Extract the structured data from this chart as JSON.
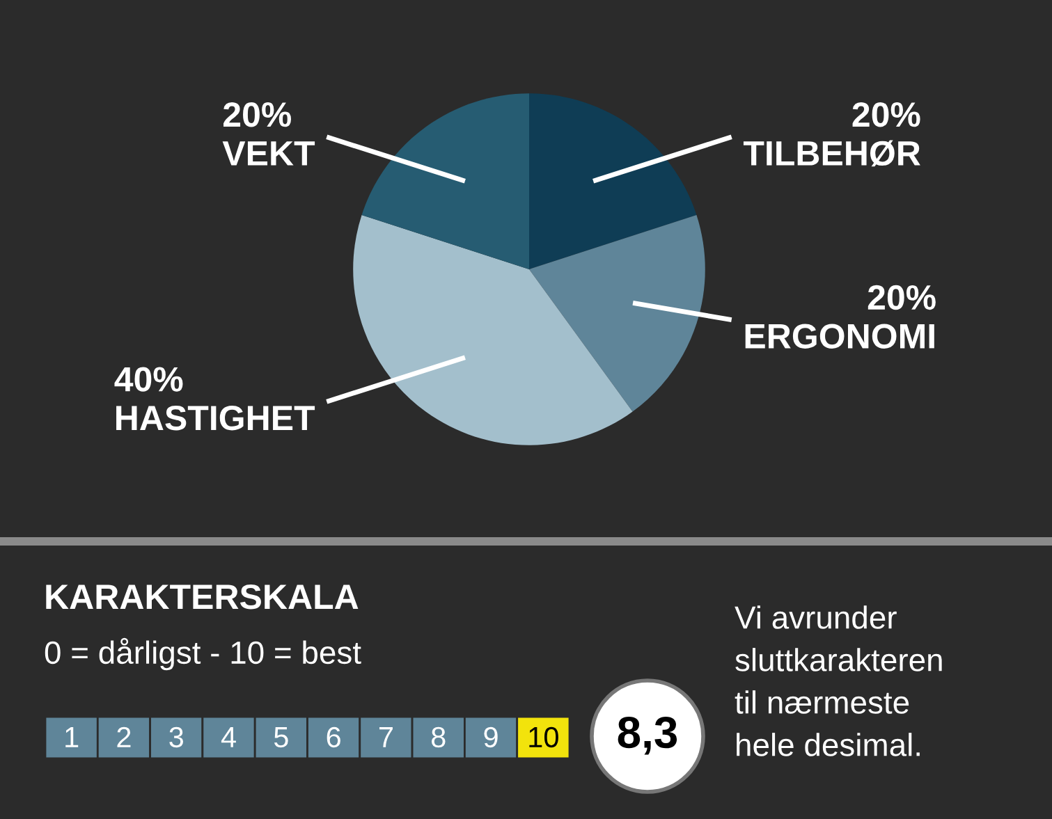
{
  "chart_data": [
    {
      "type": "pie",
      "categories": [
        "TILBEHØR",
        "ERGONOMI",
        "HASTIGHET",
        "VEKT"
      ],
      "values": [
        20,
        20,
        40,
        20
      ],
      "value_labels": [
        "20%",
        "20%",
        "40%",
        "20%"
      ],
      "colors": [
        "#0f3d55",
        "#5f8599",
        "#a3bfcc",
        "#265c72"
      ]
    },
    {
      "type": "heatmap",
      "title": "KARAKTERSKALA",
      "subtitle": "0 = dårligst - 10 = best",
      "categories": [
        null,
        null,
        null,
        null,
        null,
        null,
        null,
        null,
        null,
        null
      ],
      "y_categories": [
        null
      ],
      "cells": [
        [
          1,
          2,
          3,
          4,
          5,
          6,
          7,
          8,
          9,
          10
        ]
      ],
      "cell_labels": [
        [
          "1",
          "2",
          "3",
          "4",
          "5",
          "6",
          "7",
          "8",
          "9",
          "10"
        ]
      ],
      "colors": [
        "#5f8599",
        "#5f8599",
        "#5f8599",
        "#5f8599",
        "#5f8599",
        "#5f8599",
        "#5f8599",
        "#5f8599",
        "#5f8599",
        "#f2e30c"
      ],
      "annotations": [
        "8,3",
        "Vi avrunder\nsluttkarakteren\ntil nærmeste\nhele desimal."
      ]
    }
  ]
}
